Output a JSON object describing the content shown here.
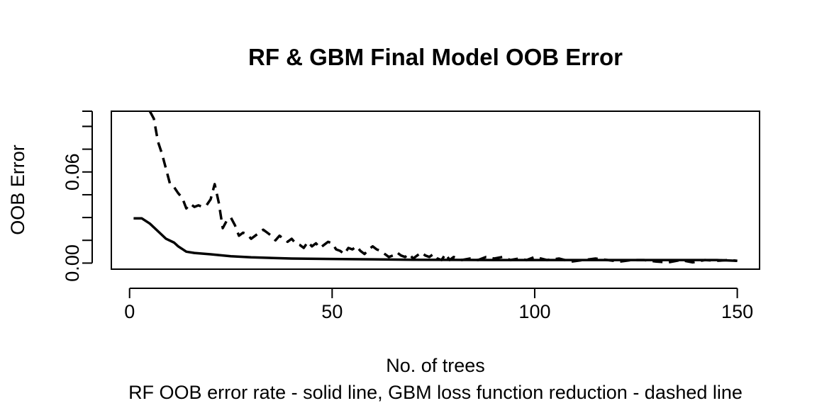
{
  "chart_data": {
    "type": "line",
    "title": "RF & GBM Final Model OOB Error",
    "xlabel": "No. of trees",
    "ylabel": "OOB Error",
    "subtitle": "RF OOB error rate - solid line, GBM loss function reduction - dashed line",
    "xlim": [
      -4.5,
      155.5
    ],
    "ylim": [
      -0.004,
      0.1
    ],
    "x_ticks": [
      0,
      50,
      100,
      150
    ],
    "x_tick_labels": [
      "0",
      "50",
      "100",
      "150"
    ],
    "y_ticks": [
      0.0,
      0.03,
      0.06,
      0.09
    ],
    "y_tick_labels": [
      "0.00",
      "0.06"
    ],
    "y_minor_ticks": [
      0.015,
      0.045,
      0.075,
      0.09
    ],
    "grid": false,
    "series": [
      {
        "style": "solid",
        "x": [
          1,
          3,
          5,
          7,
          9,
          11,
          12,
          14,
          16,
          20,
          25,
          30,
          40,
          50,
          60,
          70,
          80,
          90,
          100,
          110,
          120,
          130,
          140,
          145,
          150
        ],
        "values": [
          0.0295,
          0.0295,
          0.026,
          0.021,
          0.016,
          0.0135,
          0.011,
          0.0075,
          0.0067,
          0.0058,
          0.0045,
          0.0038,
          0.003,
          0.0027,
          0.0025,
          0.0022,
          0.0021,
          0.002,
          0.002,
          0.002,
          0.002,
          0.002,
          0.002,
          0.002,
          0.0015
        ]
      },
      {
        "style": "dashed",
        "x": [
          5,
          6,
          7,
          8,
          9,
          10,
          11,
          12,
          13,
          14,
          15,
          16,
          17,
          18,
          19,
          20,
          21,
          22,
          23,
          24,
          25,
          26,
          27,
          28,
          29,
          30,
          31,
          32,
          33,
          34,
          35,
          36,
          37,
          38,
          39,
          40,
          41,
          42,
          43,
          44,
          45,
          46,
          47,
          48,
          49,
          50,
          51,
          52,
          53,
          54,
          55,
          56,
          57,
          58,
          59,
          60,
          61,
          62,
          63,
          64,
          65,
          66,
          67,
          68,
          69,
          70,
          71,
          72,
          73,
          74,
          75,
          76,
          77,
          78,
          79,
          80,
          82,
          84,
          86,
          88,
          90,
          92,
          94,
          96,
          98,
          100,
          103,
          106,
          109,
          112,
          115,
          118,
          121,
          124,
          127,
          130,
          133,
          136,
          139,
          142,
          145,
          148,
          150
        ],
        "values": [
          0.1,
          0.095,
          0.08,
          0.072,
          0.062,
          0.052,
          0.05,
          0.046,
          0.043,
          0.036,
          0.039,
          0.037,
          0.038,
          0.037,
          0.038,
          0.042,
          0.052,
          0.04,
          0.023,
          0.028,
          0.03,
          0.025,
          0.018,
          0.02,
          0.019,
          0.016,
          0.018,
          0.02,
          0.022,
          0.02,
          0.018,
          0.015,
          0.018,
          0.016,
          0.014,
          0.016,
          0.013,
          0.012,
          0.01,
          0.014,
          0.011,
          0.013,
          0.01,
          0.012,
          0.014,
          0.013,
          0.009,
          0.008,
          0.006,
          0.01,
          0.009,
          0.011,
          0.008,
          0.006,
          0.009,
          0.011,
          0.009,
          0.008,
          0.006,
          0.004,
          0.005,
          0.007,
          0.005,
          0.004,
          0.006,
          0.003,
          0.005,
          0.007,
          0.005,
          0.004,
          0.006,
          0.003,
          0.002,
          0.006,
          0.002,
          0.004,
          0.002,
          0.003,
          0.002,
          0.004,
          0.003,
          0.004,
          0.002,
          0.003,
          0.002,
          0.004,
          0.002,
          0.003,
          0.001,
          0.002,
          0.003,
          0.002,
          0.001,
          0.002,
          0.002,
          0.001,
          0.0005,
          0.002,
          0.0005,
          0.002,
          0.0015,
          0.002,
          0.0015
        ]
      }
    ]
  },
  "colors": {
    "line": "#000000",
    "background": "#ffffff",
    "axis": "#000000"
  }
}
